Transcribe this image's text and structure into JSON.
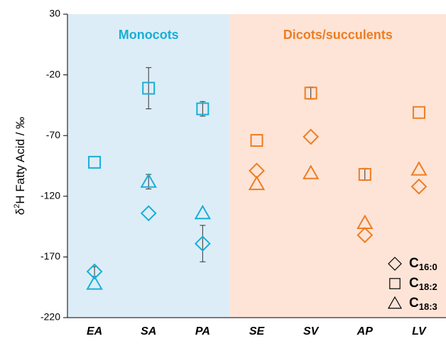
{
  "chart_data": {
    "type": "scatter",
    "ylabel": {
      "pre": "δ",
      "sup": "2",
      "post": "H Fatty Acid / ‰"
    },
    "categories": [
      "EA",
      "SA",
      "PA",
      "SE",
      "SV",
      "AP",
      "LV"
    ],
    "groups": [
      {
        "label": "Monocots",
        "color": "#1aaed6",
        "fill": "#dcedf7",
        "categories": [
          "EA",
          "SA",
          "PA"
        ]
      },
      {
        "label": "Dicots/succulents",
        "color": "#ee7d22",
        "fill": "#fde4d7",
        "categories": [
          "SE",
          "SV",
          "AP",
          "LV"
        ]
      }
    ],
    "series": [
      {
        "name": "C",
        "subscript": "16:0",
        "marker": "diamond",
        "values": [
          -182,
          -134,
          -159,
          -99,
          -71,
          -152,
          -112
        ],
        "errors": [
          4,
          null,
          15,
          null,
          null,
          null,
          null
        ]
      },
      {
        "name": "C",
        "subscript": "18:2",
        "marker": "square",
        "values": [
          -92,
          -31,
          -48,
          -74,
          -35,
          -102,
          -51
        ],
        "errors": [
          null,
          17,
          6,
          null,
          5,
          5,
          null
        ]
      },
      {
        "name": "C",
        "subscript": "18:3",
        "marker": "triangle",
        "values": [
          -192,
          -108,
          -134,
          -110,
          -101,
          -142,
          -98
        ],
        "errors": [
          null,
          6,
          null,
          null,
          null,
          null,
          null
        ]
      }
    ],
    "ylim": [
      -220,
      30
    ],
    "yticks": [
      30,
      -20,
      -70,
      -120,
      -170,
      -220
    ]
  }
}
